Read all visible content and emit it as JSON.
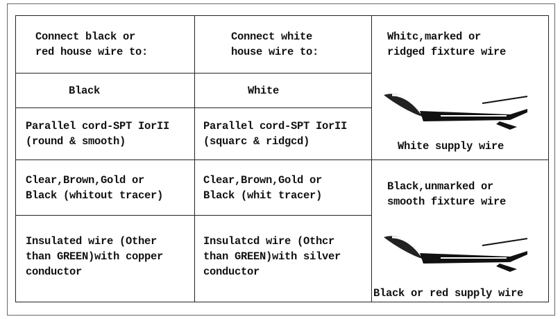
{
  "table": {
    "header": [
      "Connect black or\nred house wire to:",
      "Connect white\nhouse wire to:"
    ],
    "rows": [
      [
        "Black",
        "White"
      ],
      [
        "Parallel cord-SPT IorII\n(round & smooth)",
        "Parallel cord-SPT IorII\n(squarc & ridgcd)"
      ],
      [
        "Clear,Brown,Gold or\nBlack (whitout tracer)",
        "Clear,Brown,Gold or\nBlack (whit tracer)"
      ],
      [
        "Insulated wire (Other\nthan GREEN)with copper\nconductor",
        "Insulatcd wire (Othcr\nthan GREEN)with silver\nconductor"
      ]
    ],
    "fixtures": [
      {
        "label": "Whitc,marked or\nridged fixture wire",
        "supply": "White supply wire"
      },
      {
        "label": "Black,unmarked or\nsmooth fixture wire",
        "supply": "Black or red supply wire"
      }
    ]
  }
}
